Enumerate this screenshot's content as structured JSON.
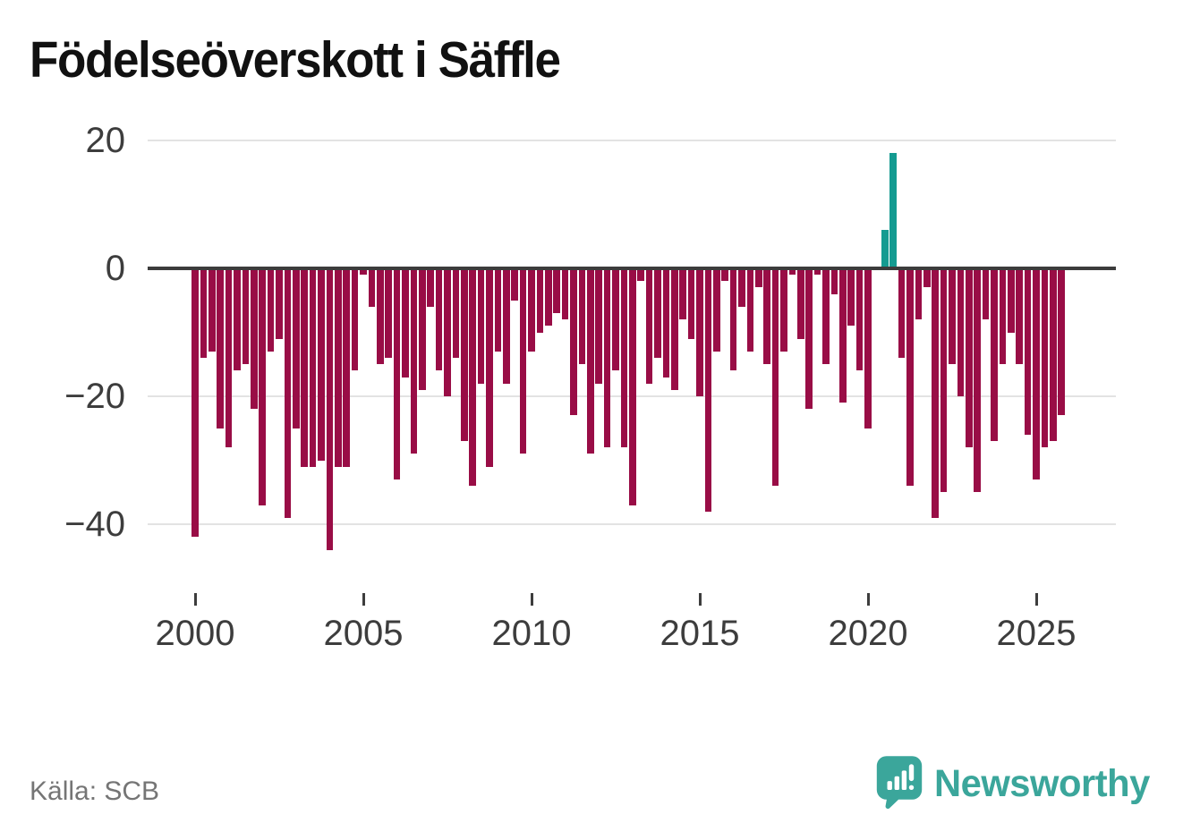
{
  "title": "Födelseöverskott i Säffle",
  "source_label": "Källa: SCB",
  "brand": {
    "name": "Newsworthy",
    "color": "#3ba69b"
  },
  "chart_data": {
    "type": "bar",
    "title": "Födelseöverskott i Säffle",
    "frequency": "quarterly",
    "start_period": "2000 K1",
    "end_period": "2025 K4",
    "grid": "horizontal",
    "ylim": [
      -46,
      22
    ],
    "colors": {
      "negative": "#990d46",
      "positive": "#149b91",
      "zero_line": "#3c3c3c",
      "grid_line": "#e3e3e3"
    },
    "y_axis": {
      "ticks": [
        {
          "label": "20",
          "value": 20
        },
        {
          "label": "0",
          "value": 0
        },
        {
          "label": "−20",
          "value": -20
        },
        {
          "label": "−40",
          "value": -40
        }
      ]
    },
    "x_axis": {
      "ticks": [
        {
          "label": "2000",
          "quarter_index": 0
        },
        {
          "label": "2005",
          "quarter_index": 20
        },
        {
          "label": "2010",
          "quarter_index": 40
        },
        {
          "label": "2015",
          "quarter_index": 60
        },
        {
          "label": "2020",
          "quarter_index": 80
        },
        {
          "label": "2025",
          "quarter_index": 100
        }
      ]
    },
    "by_year": [
      {
        "year": 2000,
        "q": [
          -42,
          -14,
          -13,
          -25
        ]
      },
      {
        "year": 2001,
        "q": [
          -28,
          -16,
          -15,
          -22
        ]
      },
      {
        "year": 2002,
        "q": [
          -37,
          -13,
          -11,
          -39
        ]
      },
      {
        "year": 2003,
        "q": [
          -25,
          -31,
          -31,
          -30
        ]
      },
      {
        "year": 2004,
        "q": [
          -44,
          -31,
          -31,
          -16
        ]
      },
      {
        "year": 2005,
        "q": [
          -1,
          -6,
          -15,
          -14
        ]
      },
      {
        "year": 2006,
        "q": [
          -33,
          -17,
          -29,
          -19
        ]
      },
      {
        "year": 2007,
        "q": [
          -6,
          -16,
          -20,
          -14
        ]
      },
      {
        "year": 2008,
        "q": [
          -27,
          -34,
          -18,
          -31
        ]
      },
      {
        "year": 2009,
        "q": [
          -13,
          -18,
          -5,
          -29
        ]
      },
      {
        "year": 2010,
        "q": [
          -13,
          -10,
          -9,
          -7
        ]
      },
      {
        "year": 2011,
        "q": [
          -8,
          -23,
          -15,
          -29
        ]
      },
      {
        "year": 2012,
        "q": [
          -18,
          -28,
          -16,
          -28
        ]
      },
      {
        "year": 2013,
        "q": [
          -37,
          -2,
          -18,
          -14
        ]
      },
      {
        "year": 2014,
        "q": [
          -17,
          -19,
          -8,
          -11
        ]
      },
      {
        "year": 2015,
        "q": [
          -20,
          -38,
          -13,
          -2
        ]
      },
      {
        "year": 2016,
        "q": [
          -16,
          -6,
          -13,
          -3
        ]
      },
      {
        "year": 2017,
        "q": [
          -15,
          -34,
          -13,
          -1
        ]
      },
      {
        "year": 2018,
        "q": [
          -11,
          -22,
          -1,
          -15
        ]
      },
      {
        "year": 2019,
        "q": [
          -4,
          -21,
          -9,
          -16
        ]
      },
      {
        "year": 2020,
        "q": [
          -25,
          0,
          6,
          18
        ]
      },
      {
        "year": 2021,
        "q": [
          -14,
          -34,
          -8,
          -3
        ]
      },
      {
        "year": 2022,
        "q": [
          -39,
          -35,
          -15,
          -20
        ]
      },
      {
        "year": 2023,
        "q": [
          -28,
          -35,
          -8,
          -27
        ]
      },
      {
        "year": 2024,
        "q": [
          -15,
          -10,
          -15,
          -26
        ]
      },
      {
        "year": 2025,
        "q": [
          -33,
          -28,
          -27,
          -23
        ]
      }
    ]
  }
}
